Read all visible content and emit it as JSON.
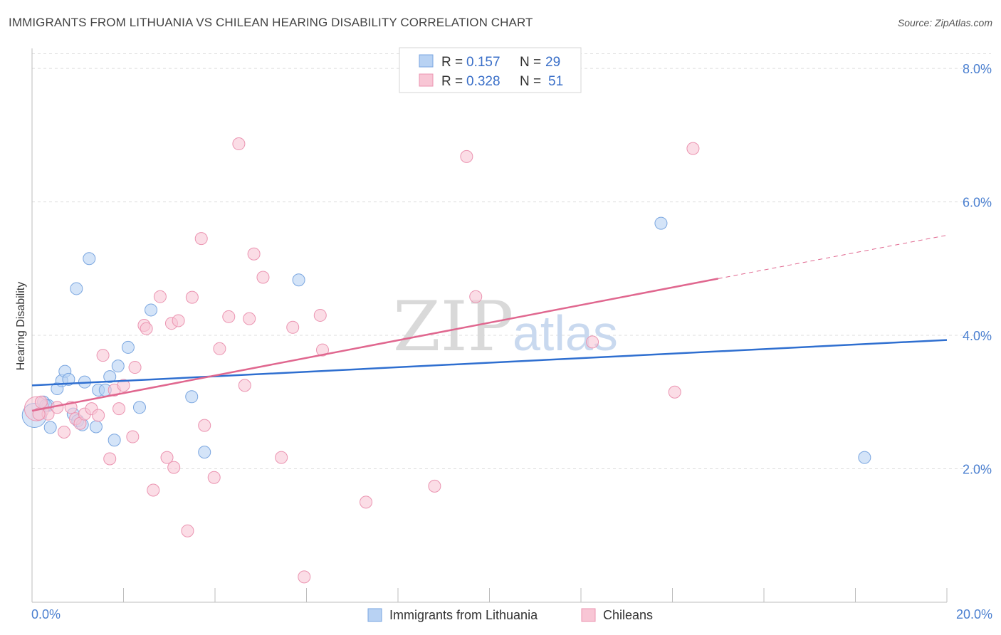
{
  "title": "IMMIGRANTS FROM LITHUANIA VS CHILEAN HEARING DISABILITY CORRELATION CHART",
  "source": "Source: ZipAtlas.com",
  "watermark": {
    "zip": "ZIP",
    "atlas": "atlas"
  },
  "colors": {
    "blue_fill": "#b8d2f3",
    "blue_stroke": "#7aa6e0",
    "blue_line": "#2f6fd0",
    "pink_fill": "#f8c6d5",
    "pink_stroke": "#eb94b1",
    "pink_line": "#e0678f",
    "tick_text": "#4a7fd0",
    "grid": "#dddddd"
  },
  "legend": {
    "rows": [
      {
        "r_label": "R =",
        "r_value": "0.157",
        "n_label": "N =",
        "n_value": "29"
      },
      {
        "r_label": "R =",
        "r_value": "0.328",
        "n_label": "N =",
        "n_value": "51"
      }
    ]
  },
  "chart_data": {
    "type": "scatter",
    "title": "IMMIGRANTS FROM LITHUANIA VS CHILEAN HEARING DISABILITY CORRELATION CHART",
    "xlabel": "",
    "ylabel": "Hearing Disability",
    "xlim": [
      0,
      20
    ],
    "ylim": [
      0,
      8.3
    ],
    "x_tick_labels": [
      "0.0%",
      "20.0%"
    ],
    "y_ticks": [
      2,
      4,
      6,
      8
    ],
    "y_tick_labels": [
      "2.0%",
      "4.0%",
      "6.0%",
      "8.0%"
    ],
    "grid": true,
    "legend_position": "top-center",
    "series": [
      {
        "name": "Immigrants from Lithuania",
        "color": "#7aa6e0",
        "r": 0.157,
        "n": 29,
        "trend": {
          "x": [
            0,
            20
          ],
          "y": [
            3.25,
            3.93
          ],
          "dashed_from": null
        },
        "points": [
          [
            0.05,
            2.8,
            "big"
          ],
          [
            0.25,
            3.0
          ],
          [
            0.35,
            2.95
          ],
          [
            0.4,
            2.62
          ],
          [
            0.55,
            3.2
          ],
          [
            0.65,
            3.32
          ],
          [
            0.72,
            3.46
          ],
          [
            0.8,
            3.34
          ],
          [
            0.9,
            2.82
          ],
          [
            1.0,
            2.72
          ],
          [
            1.1,
            2.66
          ],
          [
            1.15,
            3.3
          ],
          [
            1.25,
            5.15
          ],
          [
            0.97,
            4.7
          ],
          [
            1.45,
            3.18
          ],
          [
            1.4,
            2.63
          ],
          [
            1.6,
            3.18
          ],
          [
            1.7,
            3.38
          ],
          [
            1.8,
            2.43
          ],
          [
            1.88,
            3.54
          ],
          [
            2.1,
            3.82
          ],
          [
            2.35,
            2.92
          ],
          [
            2.6,
            4.38
          ],
          [
            3.49,
            3.08
          ],
          [
            3.77,
            2.25
          ],
          [
            5.83,
            4.83
          ],
          [
            13.75,
            5.68
          ],
          [
            18.2,
            2.17
          ],
          [
            0.3,
            2.95
          ]
        ]
      },
      {
        "name": "Chileans",
        "color": "#eb94b1",
        "r": 0.328,
        "n": 51,
        "trend": {
          "x": [
            0,
            15
          ],
          "y": [
            2.87,
            4.85
          ],
          "dashed_to": [
            20,
            5.5
          ]
        },
        "points": [
          [
            0.1,
            2.9,
            "big"
          ],
          [
            0.2,
            3.0
          ],
          [
            0.35,
            2.82
          ],
          [
            0.55,
            2.92
          ],
          [
            0.7,
            2.55
          ],
          [
            0.85,
            2.92
          ],
          [
            0.95,
            2.75
          ],
          [
            1.05,
            2.68
          ],
          [
            1.15,
            2.82
          ],
          [
            1.3,
            2.9
          ],
          [
            1.45,
            2.8
          ],
          [
            1.55,
            3.7
          ],
          [
            1.7,
            2.15
          ],
          [
            1.8,
            3.18
          ],
          [
            1.9,
            2.9
          ],
          [
            2.0,
            3.25
          ],
          [
            2.2,
            2.48
          ],
          [
            2.25,
            3.52
          ],
          [
            2.45,
            4.15
          ],
          [
            2.5,
            4.1
          ],
          [
            2.65,
            1.68
          ],
          [
            2.8,
            4.58
          ],
          [
            2.95,
            2.17
          ],
          [
            3.05,
            4.18
          ],
          [
            3.1,
            2.02
          ],
          [
            3.2,
            4.22
          ],
          [
            3.4,
            1.07
          ],
          [
            3.5,
            4.57
          ],
          [
            3.7,
            5.45
          ],
          [
            3.77,
            2.65
          ],
          [
            3.98,
            1.87
          ],
          [
            4.1,
            3.8
          ],
          [
            4.3,
            4.28
          ],
          [
            4.52,
            6.87
          ],
          [
            4.65,
            3.25
          ],
          [
            4.75,
            4.25
          ],
          [
            4.85,
            5.22
          ],
          [
            5.05,
            4.87
          ],
          [
            5.45,
            2.17
          ],
          [
            5.7,
            4.12
          ],
          [
            5.95,
            0.38
          ],
          [
            6.3,
            4.3
          ],
          [
            6.35,
            3.78
          ],
          [
            7.3,
            1.5
          ],
          [
            8.8,
            1.74
          ],
          [
            9.5,
            6.68
          ],
          [
            9.7,
            4.58
          ],
          [
            12.25,
            3.9
          ],
          [
            14.05,
            3.15
          ],
          [
            14.45,
            6.8
          ],
          [
            0.15,
            2.82
          ]
        ]
      }
    ]
  }
}
